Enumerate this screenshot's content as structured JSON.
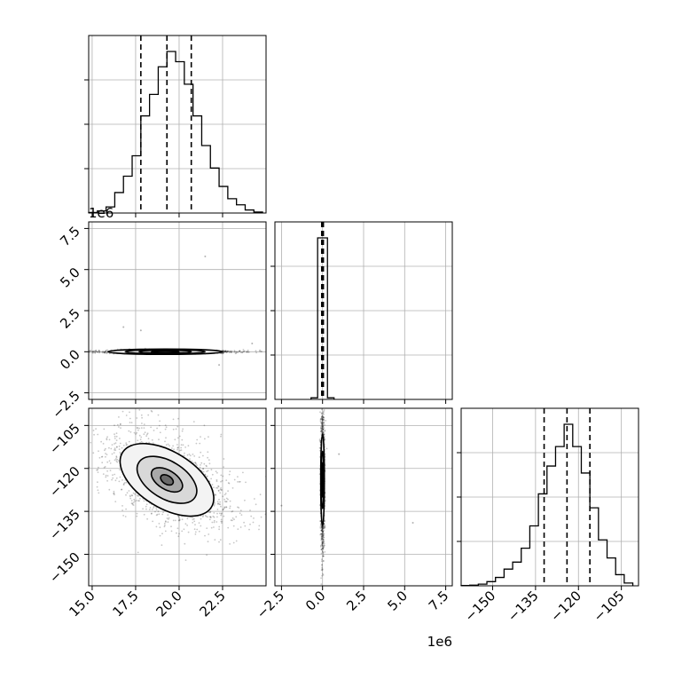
{
  "chart_data": {
    "type": "corner",
    "grid": true,
    "parameters": [
      {
        "id": "p0",
        "range": [
          14.8,
          25.0
        ],
        "ticks": [
          15.0,
          17.5,
          20.0,
          22.5
        ],
        "tick_labels": [
          "15.0",
          "17.5",
          "20.0",
          "22.5"
        ],
        "offset_label": "",
        "quantiles": [
          17.8,
          19.3,
          20.7
        ]
      },
      {
        "id": "p1",
        "range": [
          -2.9,
          7.9
        ],
        "ticks": [
          -2.5,
          0.0,
          2.5,
          5.0,
          7.5
        ],
        "tick_labels": [
          "−2.5",
          "0.0",
          "2.5",
          "5.0",
          "7.5"
        ],
        "offset_label": "1e6",
        "quantiles": [
          -0.05,
          0.0,
          0.05
        ]
      },
      {
        "id": "p2",
        "range": [
          -161,
          -99
        ],
        "ticks": [
          -150,
          -135,
          -120,
          -105
        ],
        "tick_labels": [
          "−150",
          "−135",
          "−120",
          "−105"
        ],
        "offset_label": "",
        "quantiles": [
          -132,
          -124,
          -116
        ]
      }
    ],
    "histograms": [
      {
        "param": 0,
        "edges": [
          14.8,
          15.3,
          15.8,
          16.3,
          16.8,
          17.3,
          17.8,
          18.3,
          18.8,
          19.3,
          19.8,
          20.3,
          20.8,
          21.3,
          21.8,
          22.3,
          22.8,
          23.3,
          23.8,
          24.3,
          24.8
        ],
        "counts": [
          0.5,
          2,
          6,
          20,
          36,
          56,
          95,
          116,
          143,
          158,
          148,
          126,
          95,
          66,
          44,
          26,
          14,
          8,
          3,
          1
        ]
      },
      {
        "param": 1,
        "edges": [
          -0.7,
          -0.3,
          0.3,
          0.7
        ],
        "counts": [
          1,
          100,
          1
        ]
      },
      {
        "param": 2,
        "edges": [
          -161,
          -158,
          -155,
          -152,
          -149,
          -146,
          -143,
          -140,
          -137,
          -134,
          -131,
          -128,
          -125,
          -122,
          -119,
          -116,
          -113,
          -110,
          -107,
          -104,
          -101
        ],
        "counts": [
          0.2,
          0.5,
          1.2,
          3,
          6,
          12,
          17,
          27,
          43,
          66,
          86,
          100,
          116,
          100,
          81,
          56,
          33,
          20,
          8,
          2
        ]
      }
    ],
    "pairs": [
      {
        "x": 0,
        "y": 1,
        "center": [
          19.2,
          0.0
        ],
        "contours": [
          [
            0.8,
            0.05
          ],
          [
            1.5,
            0.1
          ],
          [
            2.3,
            0.13
          ],
          [
            3.3,
            0.16
          ]
        ],
        "scatter_sx": 2.0,
        "scatter_sy": 0.05,
        "outliers": [
          [
            17.8,
            1.3
          ],
          [
            21.5,
            5.8
          ],
          [
            22.3,
            -0.8
          ],
          [
            16.8,
            1.5
          ],
          [
            24.2,
            0.5
          ]
        ]
      },
      {
        "x": 0,
        "y": 2,
        "center": [
          19.3,
          -124
        ],
        "angle": 0.55,
        "contours": [
          [
            0.4,
            1.5
          ],
          [
            1.0,
            3.3
          ],
          [
            1.9,
            6.5
          ],
          [
            3.0,
            9.8
          ]
        ],
        "scatter_sx": 2.1,
        "scatter_sy": 7.5
      },
      {
        "x": 1,
        "y": 2,
        "center": [
          0.0,
          -124
        ],
        "contours": [
          [
            0.02,
            2.5
          ],
          [
            0.05,
            6.0
          ],
          [
            0.08,
            10
          ],
          [
            0.11,
            16
          ]
        ],
        "scatter_sx": 0.06,
        "scatter_sy": 12,
        "outliers": [
          [
            -2.5,
            -133
          ],
          [
            5.5,
            -139
          ],
          [
            1.0,
            -115
          ]
        ]
      }
    ]
  }
}
